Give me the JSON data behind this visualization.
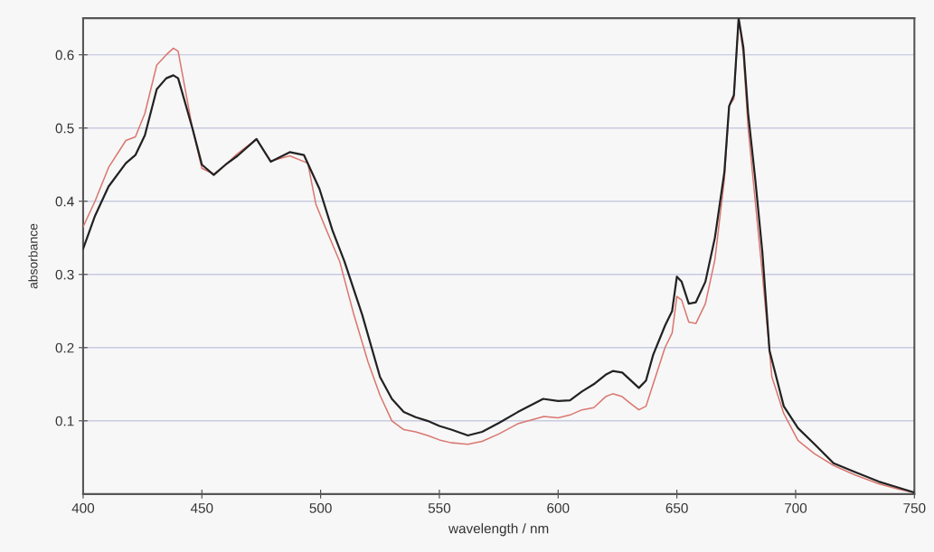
{
  "chart_data": {
    "type": "line",
    "xlabel": "wavelength / nm",
    "ylabel": "absorbance",
    "xlim": [
      400,
      750
    ],
    "xticks": [
      400,
      450,
      500,
      550,
      600,
      650,
      700,
      750
    ],
    "ylim": [
      0,
      0.65
    ],
    "yticks": [
      0.1,
      0.2,
      0.3,
      0.4,
      0.5,
      0.6
    ],
    "grid": "y",
    "marker": "none",
    "line_style": "solid",
    "series": [
      {
        "color": "#d9776f",
        "x": [
          400,
          405,
          410.7,
          418,
          422,
          426,
          431,
          435,
          438,
          440,
          446,
          450,
          455,
          460,
          465,
          473,
          479,
          487,
          494.6,
          498,
          502,
          508,
          514,
          520,
          525,
          530,
          535,
          540,
          545,
          550,
          555,
          562,
          568,
          575,
          583,
          594,
          600,
          605,
          610,
          615,
          620,
          623,
          627,
          630,
          634,
          637,
          640,
          645,
          648,
          650,
          652,
          655,
          658,
          662,
          666,
          670,
          672,
          674,
          676,
          678,
          680,
          683,
          686,
          690,
          695,
          701,
          708,
          716,
          725,
          735,
          743,
          750
        ],
        "values": [
          0.365,
          0.4,
          0.446,
          0.483,
          0.488,
          0.52,
          0.586,
          0.6,
          0.609,
          0.605,
          0.5,
          0.445,
          0.437,
          0.45,
          0.465,
          0.485,
          0.455,
          0.462,
          0.452,
          0.396,
          0.364,
          0.318,
          0.245,
          0.18,
          0.135,
          0.1,
          0.088,
          0.085,
          0.08,
          0.074,
          0.07,
          0.068,
          0.072,
          0.082,
          0.096,
          0.106,
          0.104,
          0.108,
          0.115,
          0.118,
          0.133,
          0.137,
          0.133,
          0.125,
          0.115,
          0.12,
          0.15,
          0.2,
          0.22,
          0.27,
          0.265,
          0.235,
          0.233,
          0.26,
          0.32,
          0.43,
          0.53,
          0.54,
          0.65,
          0.6,
          0.5,
          0.4,
          0.3,
          0.16,
          0.11,
          0.073,
          0.055,
          0.039,
          0.026,
          0.014,
          0.007,
          0.002
        ]
      },
      {
        "color": "#222222",
        "x": [
          400,
          405,
          410.7,
          418,
          422,
          426,
          431,
          435,
          438,
          440,
          446,
          450,
          455,
          460,
          465,
          473,
          479,
          487,
          493,
          499.5,
          505,
          510,
          517.5,
          525,
          530,
          535,
          540,
          545,
          550,
          555,
          562,
          568,
          575,
          583,
          593.7,
          600,
          605,
          610,
          615,
          620,
          623,
          627,
          630,
          634,
          637,
          640,
          645,
          648,
          650,
          652,
          655,
          658,
          662,
          666,
          670,
          672,
          674,
          676,
          678,
          680,
          683,
          686,
          689,
          695,
          701,
          708,
          716,
          725,
          735,
          743,
          750
        ],
        "values": [
          0.335,
          0.38,
          0.42,
          0.452,
          0.463,
          0.49,
          0.553,
          0.568,
          0.572,
          0.568,
          0.5,
          0.45,
          0.436,
          0.45,
          0.462,
          0.485,
          0.454,
          0.467,
          0.463,
          0.417,
          0.36,
          0.318,
          0.245,
          0.16,
          0.13,
          0.112,
          0.105,
          0.1,
          0.093,
          0.088,
          0.08,
          0.085,
          0.097,
          0.112,
          0.13,
          0.127,
          0.128,
          0.14,
          0.15,
          0.163,
          0.168,
          0.166,
          0.157,
          0.145,
          0.155,
          0.19,
          0.23,
          0.25,
          0.297,
          0.29,
          0.26,
          0.262,
          0.29,
          0.35,
          0.44,
          0.53,
          0.545,
          0.65,
          0.61,
          0.52,
          0.43,
          0.33,
          0.196,
          0.12,
          0.09,
          0.068,
          0.042,
          0.03,
          0.017,
          0.009,
          0.002
        ]
      }
    ]
  }
}
